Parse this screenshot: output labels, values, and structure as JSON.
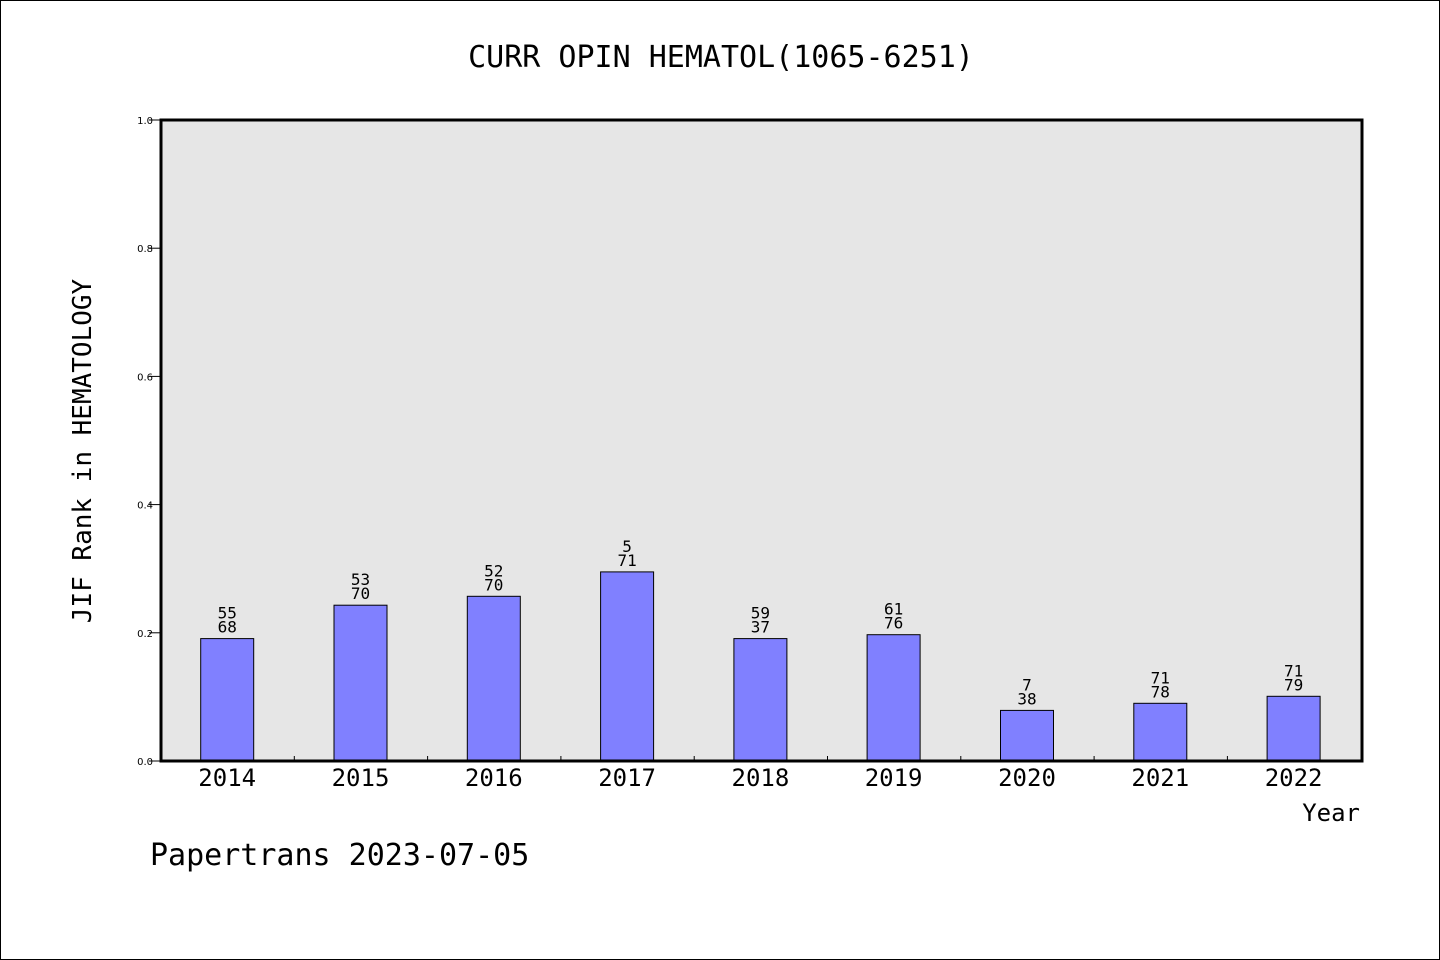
{
  "chart_data": {
    "type": "bar",
    "title": "CURR OPIN HEMATOL(1065-6251)",
    "xlabel": "Year",
    "ylabel": "JIF Rank in HEMATOLOGY",
    "ylim": [
      0,
      1.0
    ],
    "yticks": [
      "0.0",
      "0.2",
      "0.4",
      "0.6",
      "0.8",
      "1.0"
    ],
    "categories": [
      "2014",
      "2015",
      "2016",
      "2017",
      "2018",
      "2019",
      "2020",
      "2021",
      "2022"
    ],
    "values": [
      0.191,
      0.243,
      0.257,
      0.295,
      0.191,
      0.197,
      0.079,
      0.09,
      0.101
    ],
    "rank_labels": [
      "55",
      "53",
      "52",
      "5",
      "59",
      "61",
      "7",
      "71",
      "71"
    ],
    "total_labels": [
      "68",
      "70",
      "70",
      "71",
      "37",
      "76",
      "38",
      "78",
      "79"
    ],
    "grid": false,
    "colors": {
      "bar": "#8080ff",
      "plot_bg": "#e6e6e6",
      "axis": "#000000"
    }
  },
  "footer": {
    "text": "Papertrans 2023-07-05"
  }
}
